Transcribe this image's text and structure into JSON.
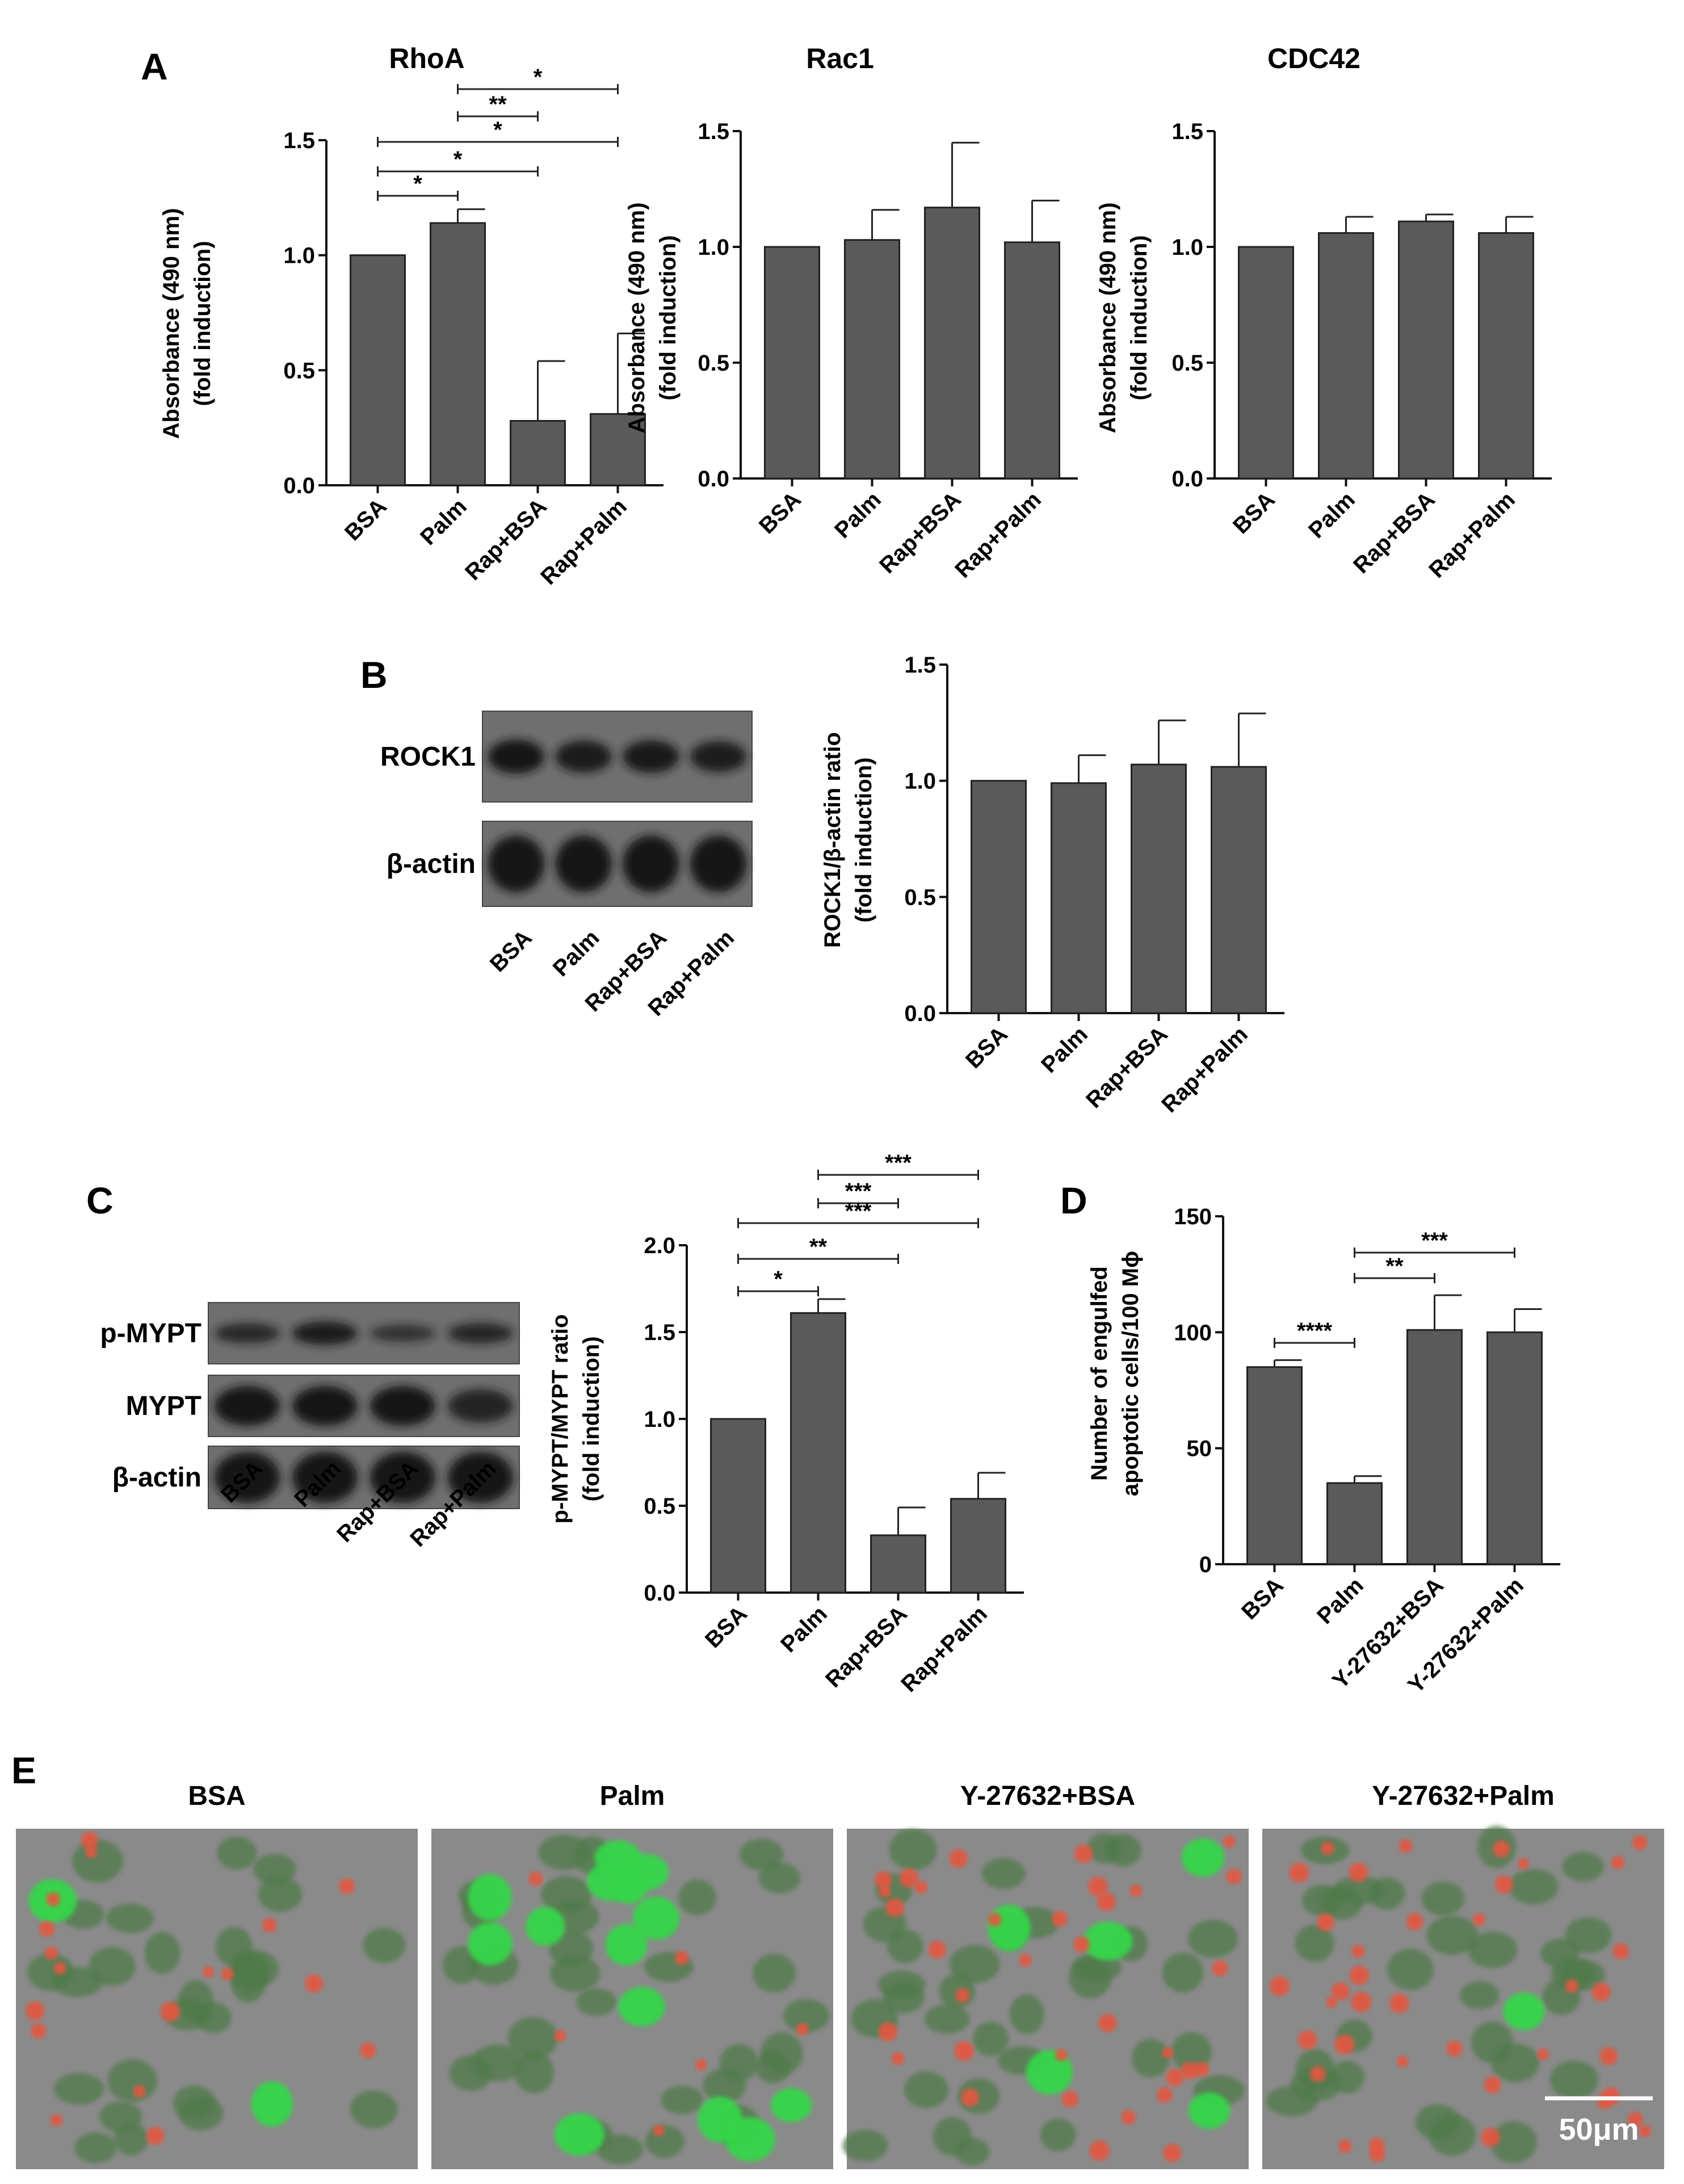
{
  "panels": {
    "A": "A",
    "B": "B",
    "C": "C",
    "D": "D",
    "E": "E"
  },
  "colors": {
    "bar": "#5a5a5a",
    "axis": "#111111",
    "blot_bg": "#6f6f6f",
    "band": "#161616",
    "cell_green": "#35d64a",
    "cell_red": "#e4573f",
    "micro_bg": "#8a8a8a"
  },
  "chart_data": [
    {
      "id": "rhoa",
      "type": "bar",
      "title": "RhoA",
      "ylabel": "Absorbance (490 nm)",
      "ylabel2": "(fold induction)",
      "categories": [
        "BSA",
        "Palm",
        "Rap+BSA",
        "Rap+Palm"
      ],
      "values": [
        1.0,
        1.14,
        0.28,
        0.31
      ],
      "errors": [
        0.0,
        0.06,
        0.26,
        0.35
      ],
      "ylim": [
        0,
        1.5
      ],
      "yticks": [
        "0.0",
        "0.5",
        "1.0",
        "1.5"
      ],
      "significance": [
        {
          "from": 1,
          "to": 3,
          "label": "*"
        },
        {
          "from": 1,
          "to": 2,
          "label": "**"
        },
        {
          "from": 0,
          "to": 3,
          "label": "*"
        },
        {
          "from": 0,
          "to": 2,
          "label": "*"
        },
        {
          "from": 0,
          "to": 1,
          "label": "*"
        }
      ]
    },
    {
      "id": "rac1",
      "type": "bar",
      "title": "Rac1",
      "ylabel": "Absorbance (490 nm)",
      "ylabel2": "(fold induction)",
      "categories": [
        "BSA",
        "Palm",
        "Rap+BSA",
        "Rap+Palm"
      ],
      "values": [
        1.0,
        1.03,
        1.17,
        1.02
      ],
      "errors": [
        0.0,
        0.13,
        0.28,
        0.18
      ],
      "ylim": [
        0,
        1.5
      ],
      "yticks": [
        "0.0",
        "0.5",
        "1.0",
        "1.5"
      ],
      "significance": []
    },
    {
      "id": "cdc42",
      "type": "bar",
      "title": "CDC42",
      "ylabel": "Absorbance (490 nm)",
      "ylabel2": "(fold induction)",
      "categories": [
        "BSA",
        "Palm",
        "Rap+BSA",
        "Rap+Palm"
      ],
      "values": [
        1.0,
        1.06,
        1.11,
        1.06
      ],
      "errors": [
        0.0,
        0.07,
        0.03,
        0.07
      ],
      "ylim": [
        0,
        1.5
      ],
      "yticks": [
        "0.0",
        "0.5",
        "1.0",
        "1.5"
      ],
      "significance": []
    },
    {
      "id": "rock1",
      "type": "bar",
      "title": "",
      "ylabel": "ROCK1/β-actin ratio",
      "ylabel2": "(fold induction)",
      "categories": [
        "BSA",
        "Palm",
        "Rap+BSA",
        "Rap+Palm"
      ],
      "values": [
        1.0,
        0.99,
        1.07,
        1.06
      ],
      "errors": [
        0.0,
        0.12,
        0.19,
        0.23
      ],
      "ylim": [
        0,
        1.5
      ],
      "yticks": [
        "0.0",
        "0.5",
        "1.0",
        "1.5"
      ],
      "significance": []
    },
    {
      "id": "mypt",
      "type": "bar",
      "title": "",
      "ylabel": "p-MYPT/MYPT ratio",
      "ylabel2": "(fold induction)",
      "categories": [
        "BSA",
        "Palm",
        "Rap+BSA",
        "Rap+Palm"
      ],
      "values": [
        1.0,
        1.61,
        0.33,
        0.54
      ],
      "errors": [
        0.0,
        0.08,
        0.16,
        0.15
      ],
      "ylim": [
        0,
        2.0
      ],
      "yticks": [
        "0.0",
        "0.5",
        "1.0",
        "1.5",
        "2.0"
      ],
      "significance": [
        {
          "from": 1,
          "to": 3,
          "label": "***"
        },
        {
          "from": 1,
          "to": 2,
          "label": "***"
        },
        {
          "from": 0,
          "to": 3,
          "label": "***"
        },
        {
          "from": 0,
          "to": 2,
          "label": "**"
        },
        {
          "from": 0,
          "to": 1,
          "label": "*"
        }
      ]
    },
    {
      "id": "engulf",
      "type": "bar",
      "title": "",
      "ylabel": "Number of engulfed",
      "ylabel2": "apoptotic cells/100 Mϕ",
      "categories": [
        "BSA",
        "Palm",
        "Y-27632+BSA",
        "Y-27632+Palm"
      ],
      "values": [
        85,
        35,
        101,
        100
      ],
      "errors": [
        3,
        3,
        15,
        10
      ],
      "ylim": [
        0,
        150
      ],
      "yticks": [
        "0",
        "50",
        "100",
        "150"
      ],
      "significance": [
        {
          "from": 1,
          "to": 3,
          "label": "***"
        },
        {
          "from": 1,
          "to": 2,
          "label": "**"
        },
        {
          "from": 0,
          "to": 1,
          "label": "****"
        }
      ]
    }
  ],
  "blots": {
    "B": {
      "rows": [
        {
          "label": "ROCK1",
          "intensity": [
            1.0,
            0.85,
            0.9,
            0.8
          ]
        },
        {
          "label": "β-actin",
          "intensity": [
            1.0,
            1.0,
            1.0,
            1.0
          ]
        }
      ],
      "lanes": [
        "BSA",
        "Palm",
        "Rap+BSA",
        "Rap+Palm"
      ]
    },
    "C": {
      "rows": [
        {
          "label": "p-MYPT",
          "intensity": [
            0.55,
            0.85,
            0.3,
            0.6
          ]
        },
        {
          "label": "MYPT",
          "intensity": [
            1.0,
            1.0,
            1.0,
            0.65
          ]
        },
        {
          "label": "β-actin",
          "intensity": [
            1.0,
            1.0,
            1.0,
            1.0
          ]
        }
      ],
      "lanes": [
        "BSA",
        "Palm",
        "Rap+BSA",
        "Rap+Palm"
      ]
    }
  },
  "micrographs": [
    {
      "title": "BSA"
    },
    {
      "title": "Palm"
    },
    {
      "title": "Y-27632+BSA"
    },
    {
      "title": "Y-27632+Palm"
    }
  ],
  "scale_bar": "50μm"
}
